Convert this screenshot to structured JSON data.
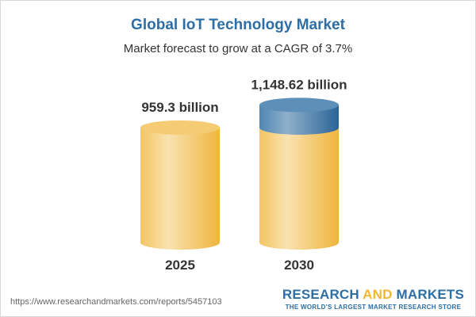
{
  "chart_data": {
    "type": "bar",
    "style": "3d-cylinder",
    "title": "Global IoT Technology Market",
    "subtitle": "Market forecast to grow at a CAGR of 3.7%",
    "categories": [
      "2025",
      "2030"
    ],
    "values": [
      959.3,
      1148.62
    ],
    "data_labels": [
      "959.3 billion",
      "1,148.62 billion"
    ],
    "unit": "billion",
    "colors": {
      "base": "#f2c15a",
      "growth": "#4f86b3",
      "title": "#2d6ea5"
    },
    "grid": false
  },
  "footer": {
    "url": "https://www.researchandmarkets.com/reports/5457103",
    "logo_part1": "RESEARCH ",
    "logo_part2": "AND",
    "logo_part3": " MARKETS",
    "tagline": "THE WORLD'S LARGEST MARKET RESEARCH STORE"
  }
}
